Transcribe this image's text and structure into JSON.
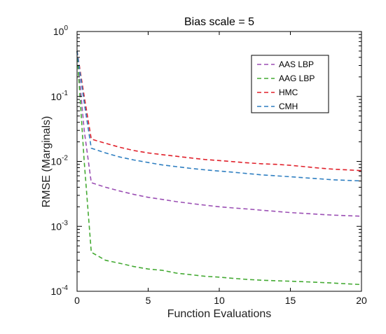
{
  "chart_data": {
    "type": "line",
    "title": "Bias scale = 5",
    "xlabel": "Function Evaluations",
    "ylabel": "RMSE (Marginals)",
    "xlim": [
      0,
      20
    ],
    "ylim": [
      0.0001,
      1
    ],
    "yscale": "log",
    "xticks": [
      0,
      5,
      10,
      15,
      20
    ],
    "yticks": [
      {
        "base": "10",
        "exp": "0",
        "value": 1
      },
      {
        "base": "10",
        "exp": "-1",
        "value": 0.1
      },
      {
        "base": "10",
        "exp": "-2",
        "value": 0.01
      },
      {
        "base": "10",
        "exp": "-3",
        "value": 0.001
      },
      {
        "base": "10",
        "exp": "-4",
        "value": 0.0001
      }
    ],
    "legend_position": "top-right",
    "grid": false,
    "series": [
      {
        "name": "AAS LBP",
        "color": "#9b4fb4",
        "dash": "dashed",
        "x": [
          0,
          0.5,
          1,
          2,
          3,
          4,
          5,
          6,
          7,
          8,
          9,
          10,
          11,
          12,
          13,
          14,
          15,
          16,
          17,
          18,
          19,
          20
        ],
        "y": [
          0.5,
          0.03,
          0.0047,
          0.004,
          0.0035,
          0.0031,
          0.0028,
          0.0026,
          0.0024,
          0.00225,
          0.00212,
          0.002,
          0.00192,
          0.00185,
          0.00177,
          0.0017,
          0.00163,
          0.00158,
          0.00153,
          0.00149,
          0.00146,
          0.00143
        ]
      },
      {
        "name": "AAG LBP",
        "color": "#44aa33",
        "dash": "dashed",
        "x": [
          0,
          0.5,
          1,
          2,
          3,
          4,
          5,
          6,
          7,
          8,
          9,
          10,
          11,
          12,
          13,
          14,
          15,
          16,
          17,
          18,
          19,
          20
        ],
        "y": [
          0.5,
          0.01,
          0.0004,
          0.0003,
          0.00027,
          0.00024,
          0.00022,
          0.00021,
          0.00019,
          0.00018,
          0.00017,
          0.000165,
          0.000158,
          0.000152,
          0.000148,
          0.000145,
          0.000143,
          0.00014,
          0.000137,
          0.000134,
          0.00013,
          0.000127
        ]
      },
      {
        "name": "HMC",
        "color": "#e0202a",
        "dash": "dashed",
        "x": [
          0,
          0.5,
          1,
          2,
          3,
          4,
          5,
          6,
          7,
          8,
          9,
          10,
          11,
          12,
          13,
          14,
          15,
          16,
          17,
          18,
          19,
          20
        ],
        "y": [
          0.5,
          0.1,
          0.022,
          0.019,
          0.0165,
          0.0147,
          0.0135,
          0.0127,
          0.012,
          0.0113,
          0.0107,
          0.0103,
          0.0099,
          0.0095,
          0.0092,
          0.009,
          0.0087,
          0.0083,
          0.0079,
          0.0076,
          0.0074,
          0.0072
        ]
      },
      {
        "name": "CMH",
        "color": "#2f7fc1",
        "dash": "dashed",
        "x": [
          0,
          0.5,
          1,
          2,
          3,
          4,
          5,
          6,
          7,
          8,
          9,
          10,
          11,
          12,
          13,
          14,
          15,
          16,
          17,
          18,
          19,
          20
        ],
        "y": [
          0.5,
          0.08,
          0.016,
          0.0135,
          0.0117,
          0.0105,
          0.0096,
          0.0088,
          0.0083,
          0.0078,
          0.0074,
          0.0071,
          0.0068,
          0.0065,
          0.0062,
          0.006,
          0.0058,
          0.0056,
          0.0054,
          0.0052,
          0.0051,
          0.005
        ]
      }
    ]
  }
}
